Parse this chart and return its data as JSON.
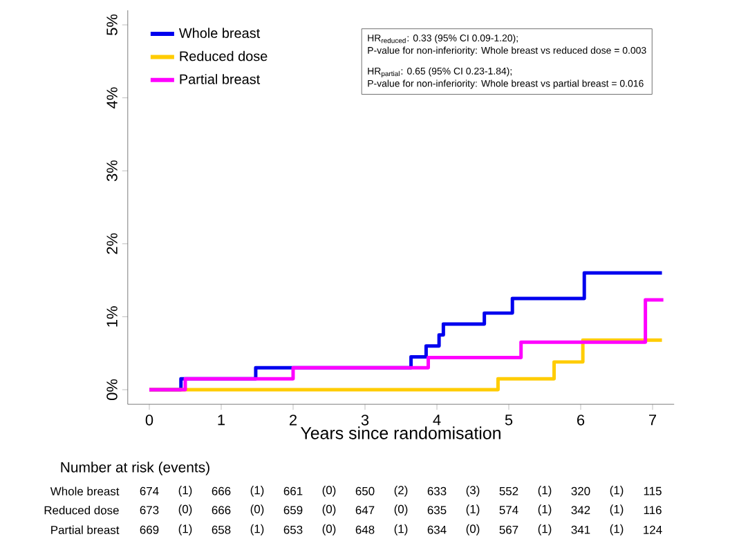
{
  "chart_data": {
    "type": "step",
    "xlabel": "Years since randomisation",
    "xlim": [
      -0.3,
      7.3
    ],
    "ylim": [
      -0.2,
      5.2
    ],
    "xticks": [
      0,
      1,
      2,
      3,
      4,
      5,
      6,
      7
    ],
    "yticks": [
      {
        "value": 0,
        "label": "0%"
      },
      {
        "value": 1,
        "label": "1%"
      },
      {
        "value": 2,
        "label": "2%"
      },
      {
        "value": 3,
        "label": "3%"
      },
      {
        "value": 4,
        "label": "4%"
      },
      {
        "value": 5,
        "label": "5%"
      }
    ],
    "legend": "top left",
    "line_style": "solid",
    "series": [
      {
        "name": "Whole breast",
        "color": "#0000ee",
        "x": [
          0,
          0.44,
          1.48,
          3.64,
          3.85,
          4.03,
          4.09,
          4.66,
          5.05,
          6.05,
          7.13
        ],
        "values": [
          0,
          0.15,
          0.3,
          0.45,
          0.6,
          0.75,
          0.9,
          1.05,
          1.25,
          1.6,
          1.6
        ]
      },
      {
        "name": "Reduced dose",
        "color": "#ffcc00",
        "x": [
          0,
          4.85,
          5.63,
          6.03,
          7.13
        ],
        "values": [
          0,
          0.15,
          0.38,
          0.68,
          0.68
        ]
      },
      {
        "name": "Partial breast",
        "color": "#ff00ff",
        "x": [
          0,
          0.5,
          2.0,
          3.88,
          5.17,
          6.9,
          7.15
        ],
        "values": [
          0,
          0.15,
          0.3,
          0.44,
          0.65,
          1.23,
          1.23
        ]
      }
    ],
    "annotations": [
      "HR$_{reduced}$: 0.33 (95% CI 0.09-1.20);",
      "P-value for non-inferiority: Whole breast vs reduced dose = 0.003",
      "HR$_{partial}$: 0.65 (95% CI 0.23-1.84);",
      "P-value for non-inferiority: Whole breast vs partial breast = 0.016",
      "Number at risk (events)",
      "Whole breast",
      "674",
      "(1)",
      "666",
      "(1)",
      "661",
      "(0)",
      "650",
      "(2)",
      "633",
      "(3)",
      "552",
      "(1)",
      "320",
      "(1)",
      "115",
      "Reduced dose",
      "673",
      "(0)",
      "666",
      "(0)",
      "659",
      "(0)",
      "647",
      "(0)",
      "635",
      "(1)",
      "574",
      "(1)",
      "342",
      "(1)",
      "116",
      "Partial breast",
      "669",
      "(1)",
      "658",
      "(1)",
      "653",
      "(0)",
      "648",
      "(1)",
      "634",
      "(0)",
      "567",
      "(1)",
      "341",
      "(1)",
      "124"
    ]
  }
}
